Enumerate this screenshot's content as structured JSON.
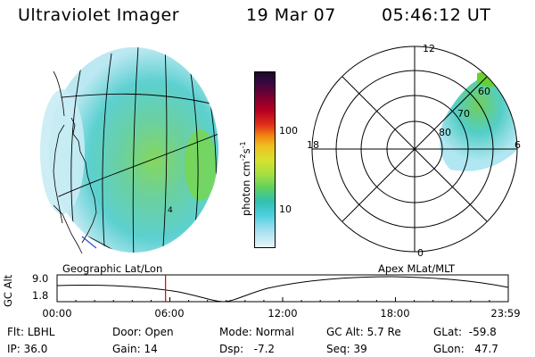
{
  "header": {
    "instrument": "Ultraviolet Imager",
    "date": "19 Mar 07",
    "time": "05:46:12 UT"
  },
  "colorbar": {
    "unit_label_main": "photon cm",
    "unit_sup1": "-2",
    "unit_mid": "s",
    "unit_sup2": "-1",
    "tick_100": "100",
    "tick_10": "10",
    "colors": [
      "#1a0a2a",
      "#3a0840",
      "#7a0030",
      "#b80020",
      "#e0301a",
      "#f08010",
      "#f0c020",
      "#d8e030",
      "#a8e040",
      "#60d060",
      "#30c0b0",
      "#50d0e0",
      "#a0e0f0",
      "#e8f4f8"
    ]
  },
  "polar_plot": {
    "mlt_12": "12",
    "mlt_18": "18",
    "mlt_6": "6",
    "mlt_0": "0",
    "lat_60": "60",
    "lat_70": "70",
    "lat_80": "80"
  },
  "orbit_plot": {
    "left_title": "Geographic Lat/Lon",
    "right_title": "Apex  MLat/MLT",
    "y_axis_label": "GC Alt",
    "y_max": "9.0",
    "y_min": "1.8",
    "x_ticks": [
      "00:00",
      "06:00",
      "12:00",
      "18:00",
      "23:59"
    ],
    "current_time_marker_hours": 5.77,
    "marker_color": "#dd0000"
  },
  "info": {
    "flt_label": "Flt:",
    "flt_value": "LBHL",
    "ip_label": "IP:",
    "ip_value": "36.0",
    "door_label": "Door:",
    "door_value": "Open",
    "gain_label": "Gain:",
    "gain_value": "14",
    "mode_label": "Mode:",
    "mode_value": "Normal",
    "dsp_label": "Dsp:",
    "dsp_value": "-7.2",
    "gcalt_label": "GC Alt:",
    "gcalt_value": "5.7 Re",
    "seq_label": "Seq:",
    "seq_value": "39",
    "glat_label": "GLat:",
    "glat_value": "-59.8",
    "glon_label": "GLon:",
    "glon_value": "47.7"
  }
}
